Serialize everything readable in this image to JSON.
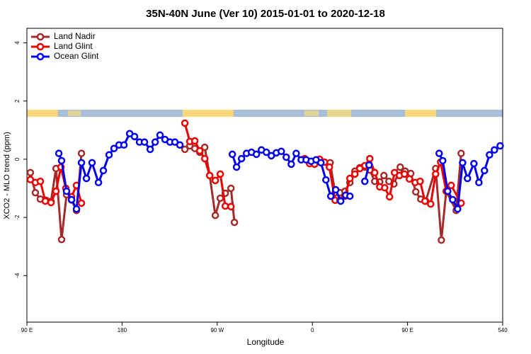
{
  "chart_data": {
    "type": "line",
    "title": "35N-40N June (Ver 10)   2015-01-01 to 2020-12-18",
    "x_label": "Longitude",
    "y_label": "XCO2 - MLO trend (ppm)",
    "xlim": [
      90,
      540
    ],
    "xticks": [
      {
        "value": 90,
        "label": "90 E"
      },
      180,
      {
        "value": 270,
        "label": "90 W"
      },
      {
        "value": 360,
        "label": "0"
      },
      {
        "value": 450,
        "label": "90 E"
      },
      540
    ],
    "ylim": [
      -5.6,
      4.5
    ],
    "yticks": [
      -4,
      -2,
      0,
      2,
      4
    ],
    "legend": "topleft",
    "series": [
      {
        "name": "Land Nadir",
        "color": "#a52a2a",
        "x": [
          93.3,
          98,
          102.7,
          108.1,
          112.8,
          117.5,
          122.8,
          127.5,
          132.2,
          136.9,
          141.6,
          null,
          239.4,
          244.1,
          248.8,
          253.5,
          258.2,
          262.9,
          268.2,
          272.9,
          277.6,
          283.0,
          286.3,
          null,
          376.8,
          381.5,
          386.1,
          390.8,
          395.5,
          400.2,
          404.9,
          409.6,
          414.3,
          419.0,
          423.7,
          427.7,
          432.4,
          437.1,
          441.8,
          443.1,
          447.8,
          453.1,
          457.8,
          462.5,
          467.2,
          476.6,
          482.0,
          486.6,
          496.0,
          500.7
        ],
        "values": [
          -0.46,
          -1.15,
          -1.37,
          -1.41,
          -1.45,
          -0.32,
          -2.76,
          -1.22,
          -1.4,
          -1.76,
          0.2,
          null,
          0.34,
          0.46,
          0.37,
          0.24,
          0.41,
          -0.56,
          -1.93,
          -1.34,
          -1.17,
          -1.0,
          -2.17,
          null,
          -0.12,
          -1.15,
          -1.15,
          -1.1,
          -0.8,
          -0.41,
          -0.29,
          -0.27,
          -0.37,
          -0.76,
          -0.78,
          -0.56,
          -0.76,
          -0.85,
          -0.44,
          -0.27,
          -0.41,
          -0.49,
          -1.12,
          -1.37,
          -1.44,
          -0.32,
          -2.78,
          -1.1,
          -1.76,
          0.2
        ]
      },
      {
        "name": "Land Glint",
        "color": "#ee0000",
        "x": [
          93.3,
          98,
          102.7,
          107.4,
          112.8,
          117.5,
          122.2,
          126.8,
          132.2,
          136.9,
          141.6,
          null,
          239.4,
          244.1,
          248.8,
          253.5,
          258.2,
          262.9,
          268.2,
          272.9,
          277.6,
          283.0,
          null,
          352.7,
          357.4,
          362.1,
          366.8,
          371.5,
          376.1,
          381.5,
          386.1,
          390.8,
          395.5,
          400.2,
          404.9,
          409.6,
          414.3,
          419.0,
          423.7,
          428.4,
          433.0,
          437.7,
          442.4,
          447.1,
          451.8,
          457.2,
          461.9,
          466.5,
          471.9,
          476.6,
          481.3,
          486.6,
          491.3,
          500.7
        ],
        "values": [
          -0.7,
          -0.8,
          -0.76,
          -1.44,
          -1.49,
          -1.1,
          -0.27,
          -1.0,
          -1.29,
          -0.9,
          -1.51,
          null,
          1.24,
          0.61,
          0.63,
          0.29,
          0.02,
          -0.56,
          -0.73,
          -0.51,
          -1.61,
          -1.63,
          null,
          0.02,
          -0.15,
          -0.17,
          0,
          -0.1,
          -0.27,
          -1.41,
          -1.41,
          -1.27,
          -0.66,
          -0.51,
          -0.32,
          -0.22,
          0.02,
          -0.46,
          -0.95,
          -0.98,
          -1.29,
          -0.46,
          -0.56,
          -0.51,
          -0.68,
          -0.8,
          -0.76,
          -1.44,
          -1.54,
          -0.51,
          -0.1,
          -1.1,
          -0.9,
          -1.51
        ]
      },
      {
        "name": "Ocean Glint",
        "color": "#0000ee",
        "x": [
          120.2,
          122.8,
          127.5,
          132.2,
          136.9,
          141.6,
          146.3,
          151.6,
          157.7,
          162.3,
          167.7,
          172.4,
          177.1,
          181.8,
          187.2,
          191.8,
          196.5,
          201.2,
          206.6,
          211.3,
          215.9,
          220.6,
          225.3,
          230.0,
          234.7,
          null,
          284.3,
          288.3,
          293.0,
          297.7,
          302.4,
          307.1,
          311.8,
          316.5,
          321.2,
          325.9,
          330.6,
          335.3,
          340.0,
          344.7,
          349.4,
          354.1,
          358.8,
          363.5,
          368.1,
          372.8,
          377.4,
          382.1,
          386.8,
          391.5,
          395.5,
          null,
          409.6,
          413.6,
          null,
          479.9,
          483.3,
          488.0,
          492.7,
          497.4,
          502.1,
          506.7,
          512.8,
          517.5,
          522.8,
          527.5,
          532.2,
          537.6
        ],
        "values": [
          0.2,
          -0.05,
          -1.1,
          -1.39,
          -1.71,
          -0.12,
          -0.66,
          -0.12,
          -0.8,
          -0.39,
          0.15,
          0.37,
          0.49,
          0.49,
          0.88,
          0.78,
          0.59,
          0.59,
          0.34,
          0.59,
          0.83,
          0.68,
          0.59,
          0.59,
          0.49,
          null,
          0.17,
          -0.27,
          0.02,
          0.2,
          0.24,
          0.17,
          0.32,
          0.24,
          0.12,
          0.22,
          0.27,
          0.07,
          -0.17,
          0.2,
          -0.02,
          -0.02,
          -0.07,
          -0.02,
          -0.12,
          -0.71,
          -1.27,
          -1.05,
          -1.44,
          -1.24,
          -1.27,
          null,
          -0.76,
          -0.2,
          null,
          0.2,
          -0.05,
          -1.1,
          -1.39,
          -1.71,
          -0.12,
          -0.66,
          -0.15,
          -0.8,
          -0.39,
          0.15,
          0.32,
          0.46
        ]
      }
    ]
  }
}
